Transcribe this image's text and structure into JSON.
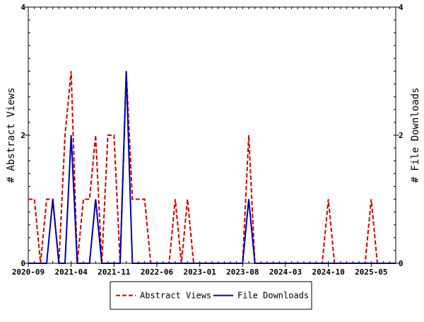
{
  "chart_data": {
    "type": "line",
    "title": "",
    "ylabel_left": "# Abstract Views",
    "ylabel_right": "# File Downloads",
    "ylim": [
      0,
      4
    ],
    "yticks_left": [
      0,
      2,
      4
    ],
    "yticks_right": [
      0,
      2,
      4
    ],
    "x_tick_labels": [
      "2020-09",
      "2021-04",
      "2021-11",
      "2022-06",
      "2023-01",
      "2023-08",
      "2024-03",
      "2024-10",
      "2025-05"
    ],
    "x_start": "2020-09",
    "x_end": "2025-09",
    "grid": false,
    "legend_position": "bottom-center",
    "series": [
      {
        "name": "Abstract Views",
        "color": "#cc0000",
        "dash": "dashed",
        "x": [
          "2020-09",
          "2020-10",
          "2020-11",
          "2020-12",
          "2021-01",
          "2021-02",
          "2021-03",
          "2021-04",
          "2021-05",
          "2021-06",
          "2021-07",
          "2021-08",
          "2021-09",
          "2021-10",
          "2021-11",
          "2021-12",
          "2022-01",
          "2022-02",
          "2022-03",
          "2022-04",
          "2022-05",
          "2022-06",
          "2022-07",
          "2022-08",
          "2022-09",
          "2022-10",
          "2022-11",
          "2022-12",
          "2023-01",
          "2023-02",
          "2023-03",
          "2023-04",
          "2023-05",
          "2023-06",
          "2023-07",
          "2023-08",
          "2023-09",
          "2023-10",
          "2023-11",
          "2023-12",
          "2024-01",
          "2024-02",
          "2024-03",
          "2024-04",
          "2024-05",
          "2024-06",
          "2024-07",
          "2024-08",
          "2024-09",
          "2024-10",
          "2024-11",
          "2024-12",
          "2025-01",
          "2025-02",
          "2025-03",
          "2025-04",
          "2025-05",
          "2025-06",
          "2025-07",
          "2025-08",
          "2025-09"
        ],
        "values": [
          1,
          1,
          0,
          1,
          1,
          0,
          2,
          3,
          0,
          1,
          1,
          2,
          0,
          2,
          2,
          0,
          3,
          1,
          1,
          1,
          0,
          0,
          0,
          0,
          1,
          0,
          1,
          0,
          0,
          0,
          0,
          0,
          0,
          0,
          0,
          0,
          2,
          0,
          0,
          0,
          0,
          0,
          0,
          0,
          0,
          0,
          0,
          0,
          0,
          1,
          0,
          0,
          0,
          0,
          0,
          0,
          1,
          0,
          0,
          0,
          0
        ]
      },
      {
        "name": "File Downloads",
        "color": "#0000aa",
        "dash": "solid",
        "x": [
          "2020-09",
          "2020-10",
          "2020-11",
          "2020-12",
          "2021-01",
          "2021-02",
          "2021-03",
          "2021-04",
          "2021-05",
          "2021-06",
          "2021-07",
          "2021-08",
          "2021-09",
          "2021-10",
          "2021-11",
          "2021-12",
          "2022-01",
          "2022-02",
          "2022-03",
          "2022-04",
          "2022-05",
          "2022-06",
          "2022-07",
          "2022-08",
          "2022-09",
          "2022-10",
          "2022-11",
          "2022-12",
          "2023-01",
          "2023-02",
          "2023-03",
          "2023-04",
          "2023-05",
          "2023-06",
          "2023-07",
          "2023-08",
          "2023-09",
          "2023-10",
          "2023-11",
          "2023-12",
          "2024-01",
          "2024-02",
          "2024-03",
          "2024-04",
          "2024-05",
          "2024-06",
          "2024-07",
          "2024-08",
          "2024-09",
          "2024-10",
          "2024-11",
          "2024-12",
          "2025-01",
          "2025-02",
          "2025-03",
          "2025-04",
          "2025-05",
          "2025-06",
          "2025-07",
          "2025-08",
          "2025-09"
        ],
        "values": [
          0,
          0,
          0,
          0,
          1,
          0,
          0,
          2,
          0,
          0,
          0,
          1,
          0,
          0,
          0,
          0,
          3,
          0,
          0,
          0,
          0,
          0,
          0,
          0,
          0,
          0,
          0,
          0,
          0,
          0,
          0,
          0,
          0,
          0,
          0,
          0,
          1,
          0,
          0,
          0,
          0,
          0,
          0,
          0,
          0,
          0,
          0,
          0,
          0,
          0,
          0,
          0,
          0,
          0,
          0,
          0,
          0,
          0,
          0,
          0,
          0
        ]
      }
    ]
  }
}
